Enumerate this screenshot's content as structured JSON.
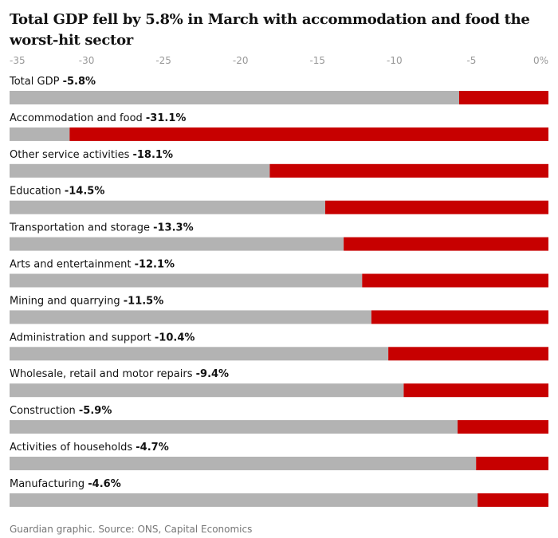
{
  "title": "Total GDP fell by 5.8% in March with accommodation and food the worst-hit sector",
  "source": "Guardian graphic. Source: ONS, Capital Economics",
  "colors": {
    "negative": "#c70000",
    "remainder": "#b3b3b3",
    "axis_text": "#999999",
    "text": "#121212"
  },
  "chart_data": {
    "type": "bar",
    "orientation": "horizontal",
    "stacked_remainder": true,
    "xlim": [
      -35,
      0
    ],
    "x_ticks": [
      "-35",
      "-30",
      "-25",
      "-20",
      "-15",
      "-10",
      "-5",
      "0%"
    ],
    "x_tick_values": [
      -35,
      -30,
      -25,
      -20,
      -15,
      -10,
      -5,
      0
    ],
    "categories": [
      "Total GDP",
      "Accommodation and food",
      "Other service activities",
      "Education",
      "Transportation and storage",
      "Arts and entertainment",
      "Mining and quarrying",
      "Administration and support",
      "Wholesale, retail and motor repairs",
      "Construction",
      "Activities of households",
      "Manufacturing"
    ],
    "values": [
      -5.8,
      -31.1,
      -18.1,
      -14.5,
      -13.3,
      -12.1,
      -11.5,
      -10.4,
      -9.4,
      -5.9,
      -4.7,
      -4.6
    ],
    "value_labels": [
      "-5.8%",
      "-31.1%",
      "-18.1%",
      "-14.5%",
      "-13.3%",
      "-12.1%",
      "-11.5%",
      "-10.4%",
      "-9.4%",
      "-5.9%",
      "-4.7%",
      "-4.6%"
    ]
  }
}
